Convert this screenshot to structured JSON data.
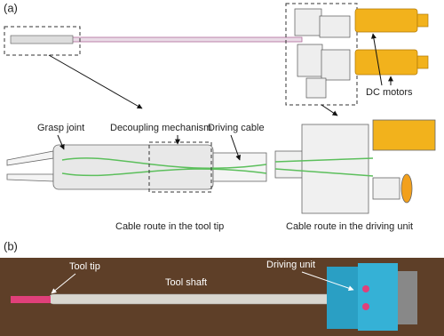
{
  "panel_a": {
    "label": "(a)",
    "motor_label": "DC motors",
    "tip_labels": [
      "Grasp joint",
      "Decoupling mechanism",
      "Driving cable"
    ],
    "captions": [
      "Cable route in the tool tip",
      "Cable route in the driving unit"
    ]
  },
  "panel_b": {
    "label": "(b)",
    "labels": [
      "Tool tip",
      "Tool shaft",
      "Driving unit"
    ]
  }
}
